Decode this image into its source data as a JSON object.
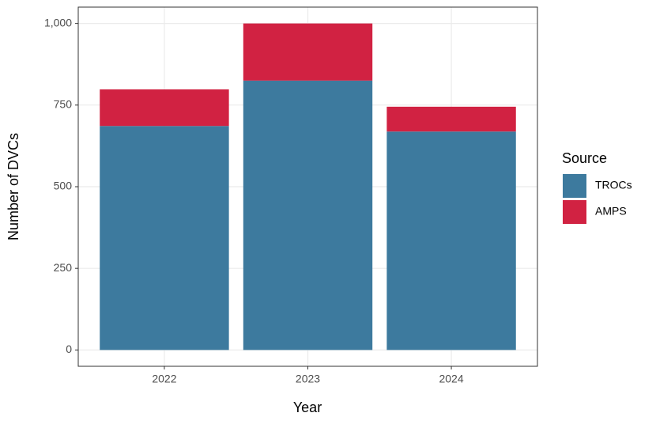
{
  "chart_data": {
    "type": "stacked_bar",
    "x_label": "Year",
    "y_label": "Number of DVCs",
    "categories": [
      "2022",
      "2023",
      "2024"
    ],
    "series": [
      {
        "name": "TROCs",
        "color": "#3d7a9e",
        "values": [
          686,
          825,
          669
        ]
      },
      {
        "name": "AMPS",
        "color": "#d12242",
        "values": [
          112,
          175,
          76
        ]
      }
    ],
    "ylim": [
      -50,
      1050
    ],
    "yticks": [
      0,
      250,
      500,
      750,
      {
        "value": 1000,
        "label": "1,000"
      }
    ],
    "grid": true,
    "legend_title": "Source",
    "legend": "right"
  }
}
